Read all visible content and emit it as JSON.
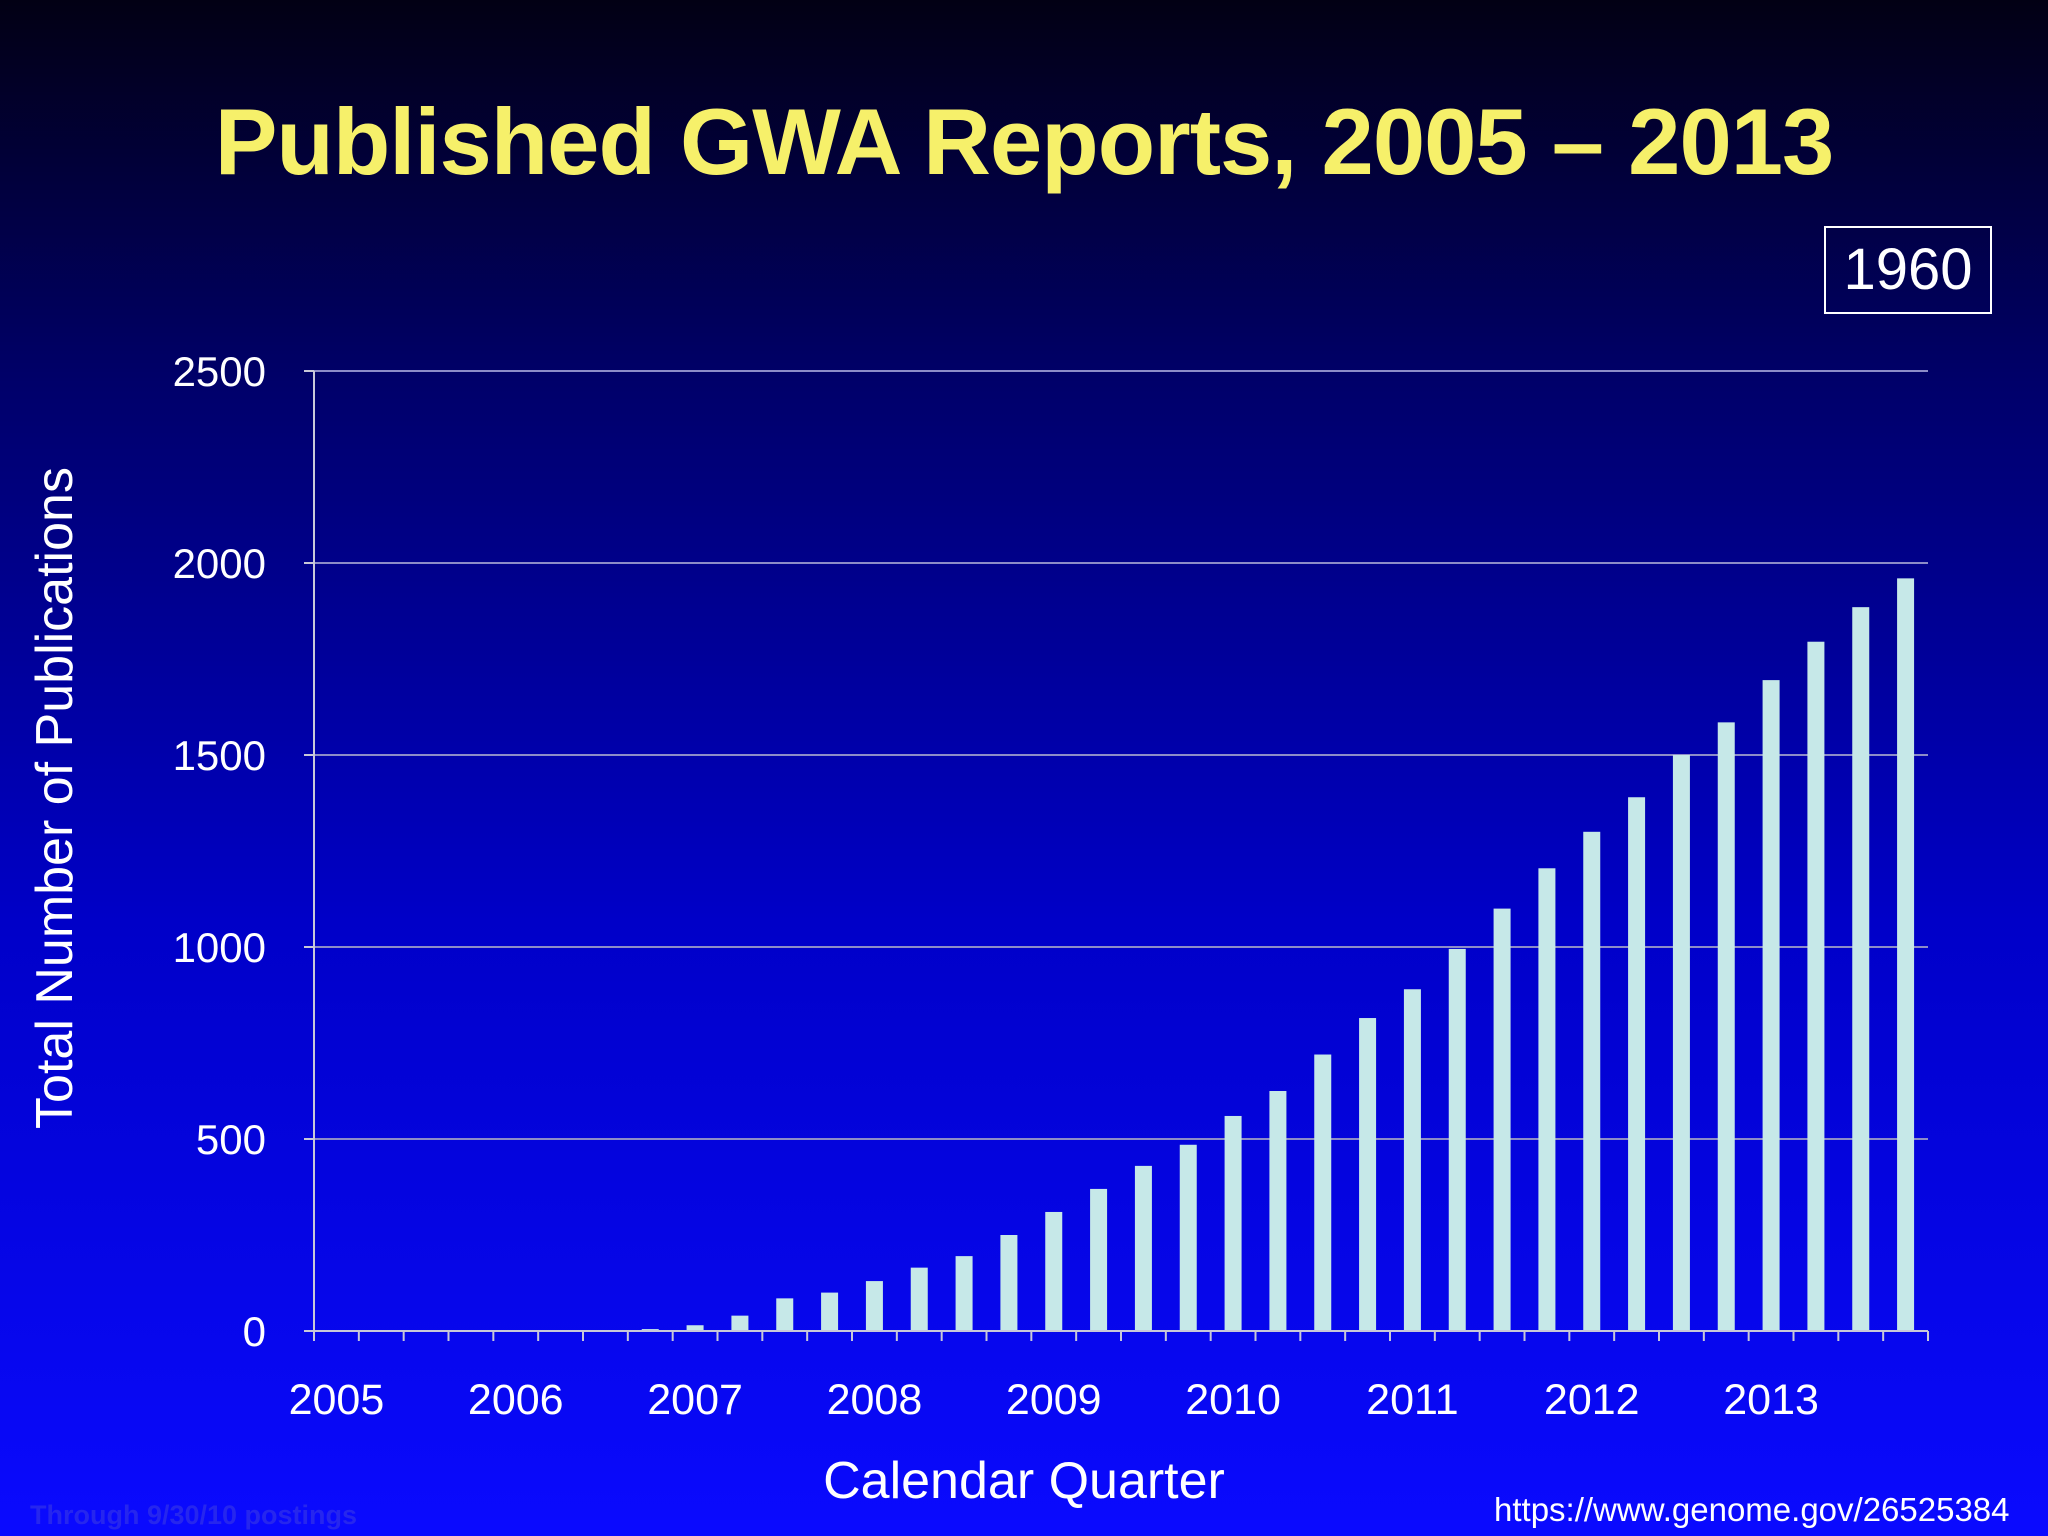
{
  "title": "Published GWA Reports, 2005 – 2013",
  "badge": "1960",
  "footnote": "Through 9/30/10 postings",
  "source_url": "https://www.genome.gov/26525384",
  "colors": {
    "bar": "#c6e8e8",
    "title": "#f6f06a",
    "grid": "#8c8cc8",
    "axis": "#c8c8d8"
  },
  "chart_data": {
    "type": "bar",
    "title": "Published GWA Reports, 2005 – 2013",
    "xlabel": "Calendar Quarter",
    "ylabel": "Total Number of Publications",
    "ylim": [
      0,
      2500
    ],
    "yticks": [
      "0",
      "500",
      "1000",
      "1500",
      "2000",
      "2500"
    ],
    "year_labels": [
      "2005",
      "2006",
      "2007",
      "2008",
      "2009",
      "2010",
      "2011",
      "2012",
      "2013"
    ],
    "grid": true,
    "legend": "none",
    "categories": [
      "2005 Q1",
      "2005 Q2",
      "2005 Q3",
      "2005 Q4",
      "2006 Q1",
      "2006 Q2",
      "2006 Q3",
      "2006 Q4",
      "2007 Q1",
      "2007 Q2",
      "2007 Q3",
      "2007 Q4",
      "2008 Q1",
      "2008 Q2",
      "2008 Q3",
      "2008 Q4",
      "2009 Q1",
      "2009 Q2",
      "2009 Q3",
      "2009 Q4",
      "2010 Q1",
      "2010 Q2",
      "2010 Q3",
      "2010 Q4",
      "2011 Q1",
      "2011 Q2",
      "2011 Q3",
      "2011 Q4",
      "2012 Q1",
      "2012 Q2",
      "2012 Q3",
      "2012 Q4",
      "2013 Q1",
      "2013 Q2",
      "2013 Q3",
      "2013 Q4"
    ],
    "values": [
      0,
      0,
      0,
      0,
      0,
      0,
      0,
      5,
      15,
      40,
      85,
      100,
      130,
      165,
      195,
      250,
      310,
      370,
      430,
      485,
      560,
      625,
      720,
      815,
      890,
      995,
      1100,
      1205,
      1300,
      1390,
      1500,
      1585,
      1695,
      1795,
      1885,
      1960
    ]
  }
}
